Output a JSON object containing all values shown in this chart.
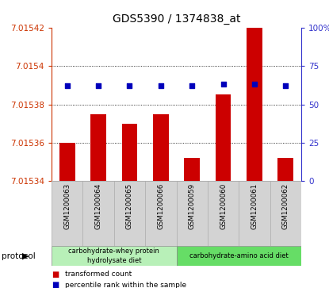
{
  "title": "GDS5390 / 1374838_at",
  "samples": [
    "GSM1200063",
    "GSM1200064",
    "GSM1200065",
    "GSM1200066",
    "GSM1200059",
    "GSM1200060",
    "GSM1200061",
    "GSM1200062"
  ],
  "transformed_count": [
    7.01536,
    7.015375,
    7.01537,
    7.015375,
    7.015352,
    7.015385,
    7.01542,
    7.015352
  ],
  "percentile_rank": [
    62,
    62,
    62,
    62,
    62,
    63,
    63,
    62
  ],
  "ylim_left": [
    7.01534,
    7.01542
  ],
  "ylim_right": [
    0,
    100
  ],
  "yticks_left": [
    7.01534,
    7.01536,
    7.01538,
    7.0154,
    7.01542
  ],
  "ytick_labels_left": [
    "7.01534",
    "7.01536",
    "7.01538",
    "7.0154",
    "7.01542"
  ],
  "yticks_right": [
    0,
    25,
    50,
    75,
    100
  ],
  "ytick_labels_right": [
    "0",
    "25",
    "50",
    "75",
    "100%"
  ],
  "bar_color": "#cc0000",
  "dot_color": "#0000bb",
  "left_axis_color": "#cc3300",
  "right_axis_color": "#3333cc",
  "grid_color": "#000000",
  "protocol_groups": [
    {
      "label": "carbohydrate-whey protein\nhydrolysate diet",
      "start": 0,
      "end": 4,
      "color": "#b8f0b8"
    },
    {
      "label": "carbohydrate-amino acid diet",
      "start": 4,
      "end": 8,
      "color": "#66dd66"
    }
  ],
  "legend_items": [
    {
      "color": "#cc0000",
      "label": "transformed count"
    },
    {
      "color": "#0000bb",
      "label": "percentile rank within the sample"
    }
  ],
  "tick_label_fontsize": 7.5,
  "title_fontsize": 10,
  "bg_color": "#ffffff",
  "plot_bg": "#ffffff",
  "sample_box_color": "#d3d3d3",
  "sample_box_edge": "#aaaaaa"
}
